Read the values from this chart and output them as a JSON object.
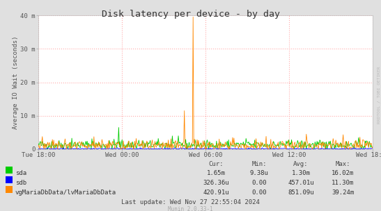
{
  "title": "Disk latency per device - by day",
  "ylabel": "Average IO Wait (seconds)",
  "background_color": "#e0e0e0",
  "plot_bg_color": "#ffffff",
  "grid_color": "#ffaaaa",
  "ylim": [
    0,
    40
  ],
  "yticks": [
    0,
    10,
    20,
    30,
    40
  ],
  "ytick_labels": [
    "0",
    "10 m",
    "20 m",
    "30 m",
    "40 m"
  ],
  "xtick_labels": [
    "Tue 18:00",
    "Wed 00:00",
    "Wed 06:00",
    "Wed 12:00",
    "Wed 18:00"
  ],
  "series": {
    "sda": {
      "color": "#00cc00",
      "linewidth": 0.6
    },
    "sdb": {
      "color": "#0000ff",
      "linewidth": 0.6
    },
    "vg": {
      "color": "#ff8800",
      "linewidth": 0.6
    }
  },
  "legend_entries": [
    {
      "label": "sda",
      "color": "#00cc00"
    },
    {
      "label": "sdb",
      "color": "#0000ff"
    },
    {
      "label": "vgMariaDbData/lvMariaDbData",
      "color": "#ff8800"
    }
  ],
  "stats_headers": [
    "Cur:",
    "Min:",
    "Avg:",
    "Max:"
  ],
  "stats_rows": [
    [
      "1.65m",
      "9.38u",
      "1.30m",
      "16.02m"
    ],
    [
      "326.36u",
      "0.00",
      "457.01u",
      "11.30m"
    ],
    [
      "420.91u",
      "0.00",
      "851.09u",
      "39.24m"
    ]
  ],
  "last_update": "Last update: Wed Nov 27 22:55:04 2024",
  "munin_version": "Munin 2.0.33-1",
  "right_label": "RRDTOOL / TOBI OETIKER",
  "n_points": 500,
  "spike_orange_idx": 231,
  "spike_orange_val": 39.5,
  "spike2_orange_idx": 218,
  "spike2_orange_val": 11.5,
  "spike_green_idx": 120,
  "spike_green_val": 6.5
}
